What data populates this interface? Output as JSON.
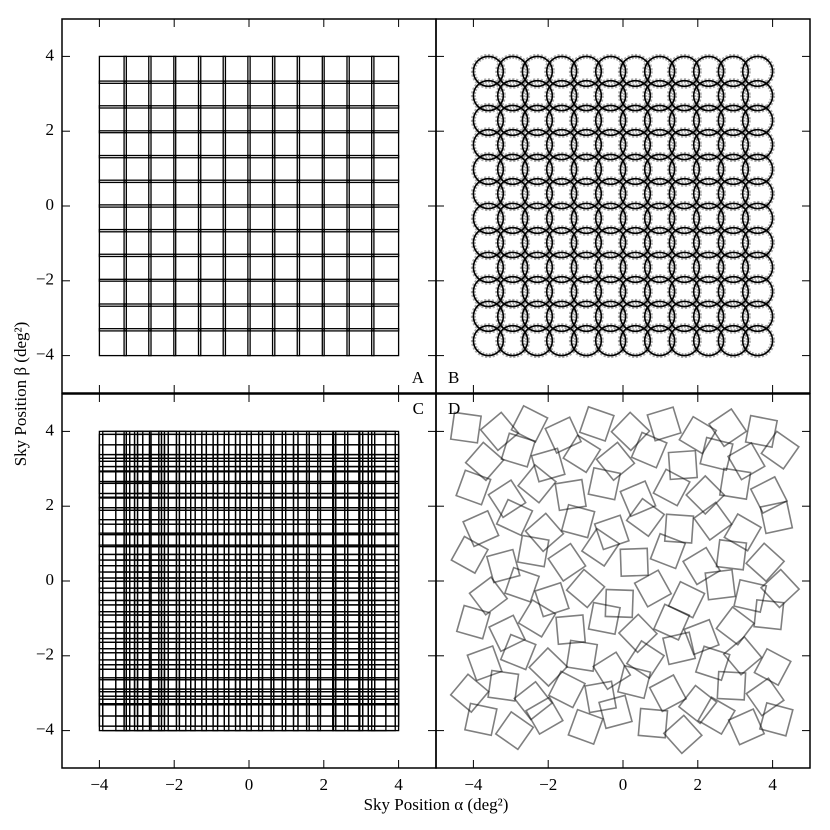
{
  "xlabel": "Sky Position α (deg²)",
  "ylabel": "Sky Position β (deg²)",
  "chart_data": [
    {
      "type": "squares",
      "label": "A",
      "label_corner": "lower right",
      "tile_size": 0.72,
      "x_centers": [
        -3.64,
        -2.98,
        -2.32,
        -1.65,
        -0.99,
        -0.33,
        0.33,
        0.99,
        1.65,
        2.32,
        2.98,
        3.64
      ],
      "y_centers": [
        -3.64,
        -2.98,
        -2.32,
        -1.65,
        -0.99,
        -0.33,
        0.33,
        0.99,
        1.65,
        2.32,
        2.98,
        3.64
      ],
      "xlim": [
        -5,
        5
      ],
      "ylim": [
        -5,
        5
      ],
      "xticks": [
        -4,
        -2,
        0,
        2,
        4
      ],
      "yticks": [
        {
          "value": -4,
          "label": "−4"
        },
        {
          "value": -2,
          "label": "−2"
        },
        0,
        2,
        4
      ]
    },
    {
      "type": "circles",
      "label": "B",
      "label_corner": "lower left",
      "radius": 0.4,
      "x_centers": [
        -3.6,
        -2.95,
        -2.29,
        -1.64,
        -0.98,
        -0.33,
        0.33,
        0.98,
        1.64,
        2.29,
        2.95,
        3.6
      ],
      "y_centers": [
        -3.6,
        -2.95,
        -2.29,
        -1.64,
        -0.98,
        -0.33,
        0.33,
        0.98,
        1.64,
        2.29,
        2.95,
        3.6
      ],
      "xlim": [
        -5,
        5
      ],
      "ylim": [
        -5,
        5
      ],
      "xticks": [
        -4,
        -2,
        0,
        2,
        4
      ],
      "yticks": [
        -4,
        -2,
        0,
        2,
        4
      ]
    },
    {
      "type": "squares",
      "label": "C",
      "label_corner": "upper right",
      "tile_size": 0.72,
      "x_centers": [
        -3.64,
        -3.55,
        -3.2,
        -2.98,
        -2.7,
        -2.62,
        -2.3,
        -2.05,
        -1.8,
        -1.5,
        -1.2,
        -0.9,
        -0.6,
        -0.3,
        0.0,
        0.3,
        0.62,
        0.95,
        1.25,
        1.55,
        1.9,
        2.2,
        2.6,
        2.68,
        3.0,
        3.3,
        3.55,
        3.64
      ],
      "y_centers": [
        -3.64,
        -3.52,
        -3.25,
        -2.95,
        -2.72,
        -2.6,
        -2.28,
        -2.0,
        -1.75,
        -1.45,
        -1.18,
        -0.88,
        -0.55,
        -0.28,
        0.05,
        0.35,
        0.6,
        0.92,
        1.28,
        1.6,
        1.88,
        2.25,
        2.58,
        2.7,
        3.02,
        3.28,
        3.56,
        3.64
      ],
      "xlim": [
        -5,
        5
      ],
      "ylim": [
        -5,
        5
      ],
      "xticks": [
        {
          "value": -4,
          "label": "−4"
        },
        {
          "value": -2,
          "label": "−2"
        },
        0,
        2,
        4
      ],
      "yticks": [
        {
          "value": -4,
          "label": "−4"
        },
        {
          "value": -2,
          "label": "−2"
        },
        0,
        2,
        4
      ]
    },
    {
      "type": "rotated",
      "label": "D",
      "label_corner": "upper left",
      "tile_size": 0.72,
      "tiles": [
        [
          -3.8,
          -3.7,
          12
        ],
        [
          -2.9,
          -4.0,
          35
        ],
        [
          -2.1,
          -3.6,
          60
        ],
        [
          -1.0,
          -3.9,
          20
        ],
        [
          -0.2,
          -3.5,
          75
        ],
        [
          0.8,
          -3.8,
          5
        ],
        [
          1.6,
          -4.1,
          48
        ],
        [
          2.5,
          -3.6,
          30
        ],
        [
          3.3,
          -3.9,
          66
        ],
        [
          4.1,
          -3.7,
          15
        ],
        [
          -4.1,
          -3.0,
          40
        ],
        [
          -3.2,
          -2.8,
          8
        ],
        [
          -2.4,
          -3.2,
          52
        ],
        [
          -1.5,
          -2.9,
          27
        ],
        [
          -0.6,
          -3.1,
          80
        ],
        [
          0.3,
          -2.7,
          14
        ],
        [
          1.2,
          -3.0,
          62
        ],
        [
          2.0,
          -3.3,
          38
        ],
        [
          2.9,
          -2.8,
          3
        ],
        [
          3.8,
          -3.1,
          55
        ],
        [
          -3.7,
          -2.2,
          70
        ],
        [
          -2.8,
          -1.9,
          22
        ],
        [
          -2.0,
          -2.3,
          44
        ],
        [
          -1.1,
          -2.0,
          9
        ],
        [
          -0.3,
          -2.4,
          58
        ],
        [
          0.6,
          -2.1,
          33
        ],
        [
          1.5,
          -1.8,
          77
        ],
        [
          2.4,
          -2.2,
          18
        ],
        [
          3.2,
          -2.0,
          50
        ],
        [
          4.0,
          -2.3,
          28
        ],
        [
          -4.0,
          -1.1,
          16
        ],
        [
          -3.1,
          -1.4,
          64
        ],
        [
          -2.3,
          -1.0,
          31
        ],
        [
          -1.4,
          -1.3,
          85
        ],
        [
          -0.5,
          -1.0,
          11
        ],
        [
          0.4,
          -1.4,
          46
        ],
        [
          1.3,
          -1.1,
          24
        ],
        [
          2.1,
          -1.5,
          69
        ],
        [
          3.0,
          -1.2,
          37
        ],
        [
          3.9,
          -0.9,
          6
        ],
        [
          -3.6,
          -0.4,
          53
        ],
        [
          -2.7,
          -0.1,
          19
        ],
        [
          -1.9,
          -0.5,
          72
        ],
        [
          -1.0,
          -0.2,
          40
        ],
        [
          -0.1,
          -0.6,
          2
        ],
        [
          0.8,
          -0.2,
          61
        ],
        [
          1.7,
          -0.5,
          26
        ],
        [
          2.6,
          -0.1,
          83
        ],
        [
          3.4,
          -0.4,
          13
        ],
        [
          4.2,
          -0.2,
          47
        ],
        [
          -4.1,
          0.7,
          29
        ],
        [
          -3.2,
          0.4,
          75
        ],
        [
          -2.4,
          0.8,
          10
        ],
        [
          -1.5,
          0.5,
          56
        ],
        [
          -0.6,
          0.9,
          34
        ],
        [
          0.3,
          0.5,
          88
        ],
        [
          1.2,
          0.8,
          21
        ],
        [
          2.1,
          0.4,
          59
        ],
        [
          2.9,
          0.7,
          7
        ],
        [
          3.8,
          0.5,
          42
        ],
        [
          -3.8,
          1.4,
          66
        ],
        [
          -2.9,
          1.7,
          25
        ],
        [
          -2.1,
          1.3,
          49
        ],
        [
          -1.2,
          1.6,
          15
        ],
        [
          -0.3,
          1.3,
          71
        ],
        [
          0.6,
          1.7,
          36
        ],
        [
          1.5,
          1.4,
          4
        ],
        [
          2.4,
          1.6,
          54
        ],
        [
          3.2,
          1.3,
          30
        ],
        [
          4.1,
          1.7,
          78
        ],
        [
          -4.0,
          2.5,
          20
        ],
        [
          -3.1,
          2.2,
          57
        ],
        [
          -2.3,
          2.6,
          39
        ],
        [
          -1.4,
          2.3,
          81
        ],
        [
          -0.5,
          2.6,
          12
        ],
        [
          0.4,
          2.2,
          67
        ],
        [
          1.3,
          2.5,
          28
        ],
        [
          2.2,
          2.3,
          45
        ],
        [
          3.0,
          2.6,
          9
        ],
        [
          3.9,
          2.3,
          63
        ],
        [
          -3.7,
          3.2,
          41
        ],
        [
          -2.8,
          3.5,
          17
        ],
        [
          -2.0,
          3.1,
          74
        ],
        [
          -1.1,
          3.4,
          32
        ],
        [
          -0.2,
          3.2,
          51
        ],
        [
          0.7,
          3.5,
          23
        ],
        [
          1.6,
          3.1,
          86
        ],
        [
          2.5,
          3.4,
          14
        ],
        [
          3.3,
          3.2,
          60
        ],
        [
          4.2,
          3.5,
          35
        ],
        [
          -4.2,
          4.1,
          8
        ],
        [
          -3.3,
          4.0,
          50
        ],
        [
          -2.5,
          4.2,
          27
        ],
        [
          -1.6,
          3.9,
          65
        ],
        [
          -0.7,
          4.2,
          19
        ],
        [
          0.2,
          4.0,
          44
        ],
        [
          1.1,
          4.2,
          73
        ],
        [
          2.0,
          3.9,
          31
        ],
        [
          2.8,
          4.1,
          56
        ],
        [
          3.7,
          4.0,
          11
        ]
      ],
      "xlim": [
        -5,
        5
      ],
      "ylim": [
        -5,
        5
      ],
      "xticks": [
        {
          "value": -4,
          "label": "−4"
        },
        {
          "value": -2,
          "label": "−2"
        },
        0,
        2,
        4
      ],
      "yticks": [
        -4,
        -2,
        0,
        2,
        4
      ]
    }
  ]
}
